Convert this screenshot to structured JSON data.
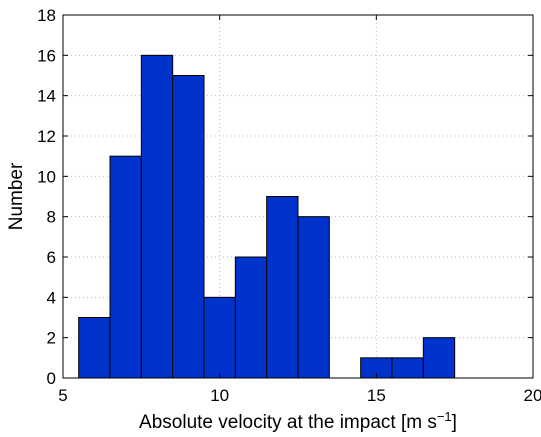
{
  "chart_data": {
    "type": "bar",
    "title": "",
    "xlabel": "Absolute velocity at the impact [m s",
    "xlabel_superscript": "−1",
    "xlabel_suffix": "]",
    "ylabel": "Number",
    "xlim": [
      5,
      20
    ],
    "ylim": [
      0,
      18
    ],
    "x_ticks": [
      5,
      10,
      15,
      20
    ],
    "y_ticks": [
      0,
      2,
      4,
      6,
      8,
      10,
      12,
      14,
      16,
      18
    ],
    "grid": true,
    "bar_color": "#0033cc",
    "bins": [
      {
        "x0": 5.5,
        "x1": 6.5,
        "value": 3
      },
      {
        "x0": 6.5,
        "x1": 7.5,
        "value": 11
      },
      {
        "x0": 7.5,
        "x1": 8.5,
        "value": 16
      },
      {
        "x0": 8.5,
        "x1": 9.5,
        "value": 15
      },
      {
        "x0": 9.5,
        "x1": 10.5,
        "value": 4
      },
      {
        "x0": 10.5,
        "x1": 11.5,
        "value": 6
      },
      {
        "x0": 11.5,
        "x1": 12.5,
        "value": 9
      },
      {
        "x0": 12.5,
        "x1": 13.5,
        "value": 8
      },
      {
        "x0": 14.5,
        "x1": 15.5,
        "value": 1
      },
      {
        "x0": 15.5,
        "x1": 16.5,
        "value": 1
      },
      {
        "x0": 16.5,
        "x1": 17.5,
        "value": 2
      }
    ]
  }
}
